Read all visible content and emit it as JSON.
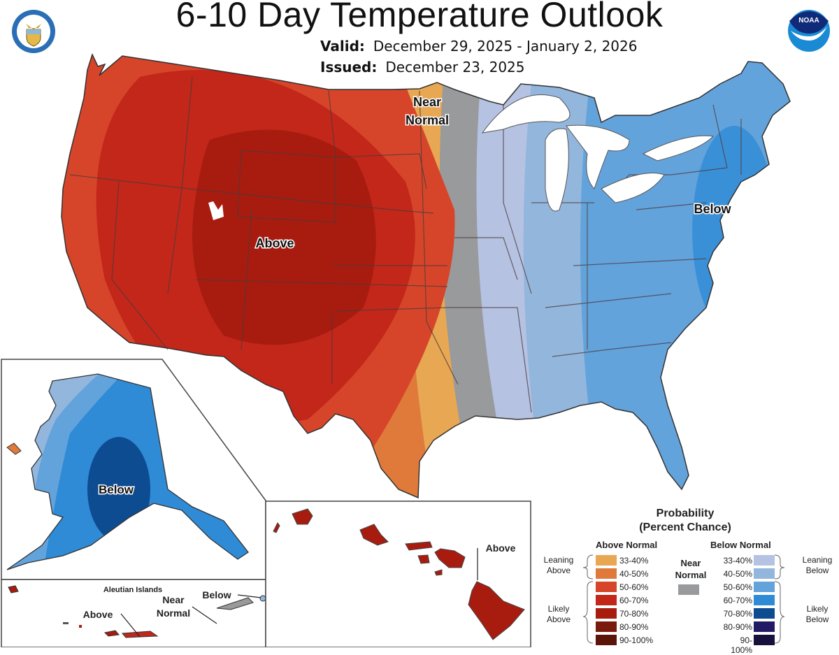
{
  "header": {
    "title": "6-10 Day Temperature Outlook",
    "valid_label": "Valid:",
    "valid_value": "December 29, 2025 - January 2, 2026",
    "issued_label": "Issued:",
    "issued_value": "December 23, 2025"
  },
  "logos": {
    "left": "doc-seal-icon",
    "right": "noaa-logo-icon",
    "noaa_text": "NOAA"
  },
  "map": {
    "conus_labels": {
      "above": "Above",
      "near_normal_line1": "Near",
      "near_normal_line2": "Normal",
      "below": "Below"
    },
    "alaska": {
      "label": "Below"
    },
    "aleutians": {
      "title": "Aleutian Islands",
      "above": "Above",
      "near_line1": "Near",
      "near_line2": "Normal",
      "below": "Below"
    },
    "hawaii": {
      "label": "Above"
    }
  },
  "legend": {
    "title_line1": "Probability",
    "title_line2": "(Percent Chance)",
    "above_header": "Above Normal",
    "below_header": "Below Normal",
    "near_line1": "Near",
    "near_line2": "Normal",
    "near_color": "#999a9c",
    "leaning_above_1": "Leaning",
    "leaning_above_2": "Above",
    "likely_above_1": "Likely",
    "likely_above_2": "Above",
    "leaning_below_1": "Leaning",
    "leaning_below_2": "Below",
    "likely_below_1": "Likely",
    "likely_below_2": "Below",
    "above": [
      {
        "range": "33-40%",
        "color": "#e8a752"
      },
      {
        "range": "40-50%",
        "color": "#e07a3a"
      },
      {
        "range": "50-60%",
        "color": "#d6452a"
      },
      {
        "range": "60-70%",
        "color": "#c2271a"
      },
      {
        "range": "70-80%",
        "color": "#a81c10"
      },
      {
        "range": "80-90%",
        "color": "#7a1a0c"
      },
      {
        "range": "90-100%",
        "color": "#5a1508"
      }
    ],
    "below": [
      {
        "range": "33-40%",
        "color": "#b5c2e2"
      },
      {
        "range": "40-50%",
        "color": "#93b6dd"
      },
      {
        "range": "50-60%",
        "color": "#63a3dc"
      },
      {
        "range": "60-70%",
        "color": "#2f8bd6"
      },
      {
        "range": "70-80%",
        "color": "#0e4c92"
      },
      {
        "range": "80-90%",
        "color": "#231a66"
      },
      {
        "range": "90-100%",
        "color": "#17113d"
      }
    ]
  }
}
